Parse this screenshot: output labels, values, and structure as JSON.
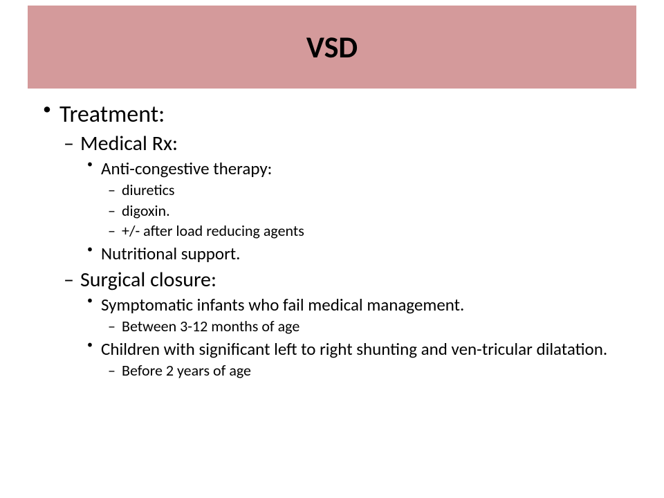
{
  "slide": {
    "background": "#ffffff",
    "title_band_color": "#d49a9b",
    "text_color": "#000000",
    "title": {
      "text": "VSD",
      "fontsize": 44,
      "weight": 700
    },
    "fontsizes": {
      "lvl1": 34,
      "lvl2": 30,
      "lvl3": 25,
      "lvl4": 22
    },
    "content": {
      "heading": "Treatment:",
      "sections": [
        {
          "label": "Medical Rx:",
          "items": [
            {
              "text": "Anti-congestive therapy:",
              "sub": [
                "  diuretics",
                "digoxin.",
                "+/- after load reducing agents"
              ]
            },
            {
              "text": "Nutritional support.",
              "sub": []
            }
          ]
        },
        {
          "label": "Surgical closure:",
          "items": [
            {
              "text": "Symptomatic infants who fail medical management.",
              "sub": [
                "Between 3-12 months of age"
              ]
            },
            {
              "text": "Children with significant left to right shunting and ven-tricular dilatation.",
              "sub": [
                "Before 2 years of age"
              ]
            }
          ]
        }
      ]
    }
  }
}
